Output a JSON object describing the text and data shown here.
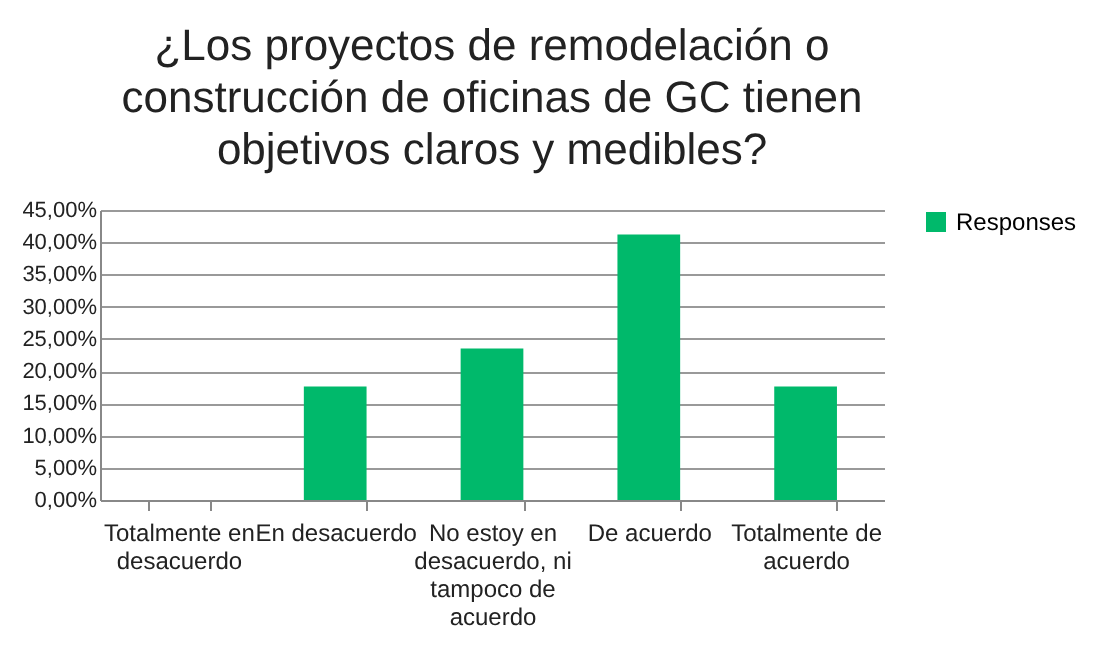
{
  "chart_data": {
    "type": "bar",
    "title": "¿Los proyectos de remodelación o construcción de oficinas de GC tienen objetivos claros y medibles?",
    "categories": [
      "Totalmente en desacuerdo",
      "En desacuerdo",
      "No estoy en desacuerdo, ni tampoco de acuerdo",
      "De acuerdo",
      "Totalmente de acuerdo"
    ],
    "series": [
      {
        "name": "Responses",
        "color": "#00b96b",
        "values": [
          0,
          17.6,
          23.5,
          41.2,
          17.6
        ]
      }
    ],
    "ylim": [
      0,
      45
    ],
    "yticks": [
      {
        "value": 0,
        "label": "0,00%"
      },
      {
        "value": 5,
        "label": "5,00%"
      },
      {
        "value": 10,
        "label": "10,00%"
      },
      {
        "value": 15,
        "label": "15,00%"
      },
      {
        "value": 20,
        "label": "20,00%"
      },
      {
        "value": 25,
        "label": "25,00%"
      },
      {
        "value": 30,
        "label": "30,00%"
      },
      {
        "value": 35,
        "label": "35,00%"
      },
      {
        "value": 40,
        "label": "40,00%"
      },
      {
        "value": 45,
        "label": "45,00%"
      }
    ],
    "grid": "y",
    "legend": "right"
  }
}
